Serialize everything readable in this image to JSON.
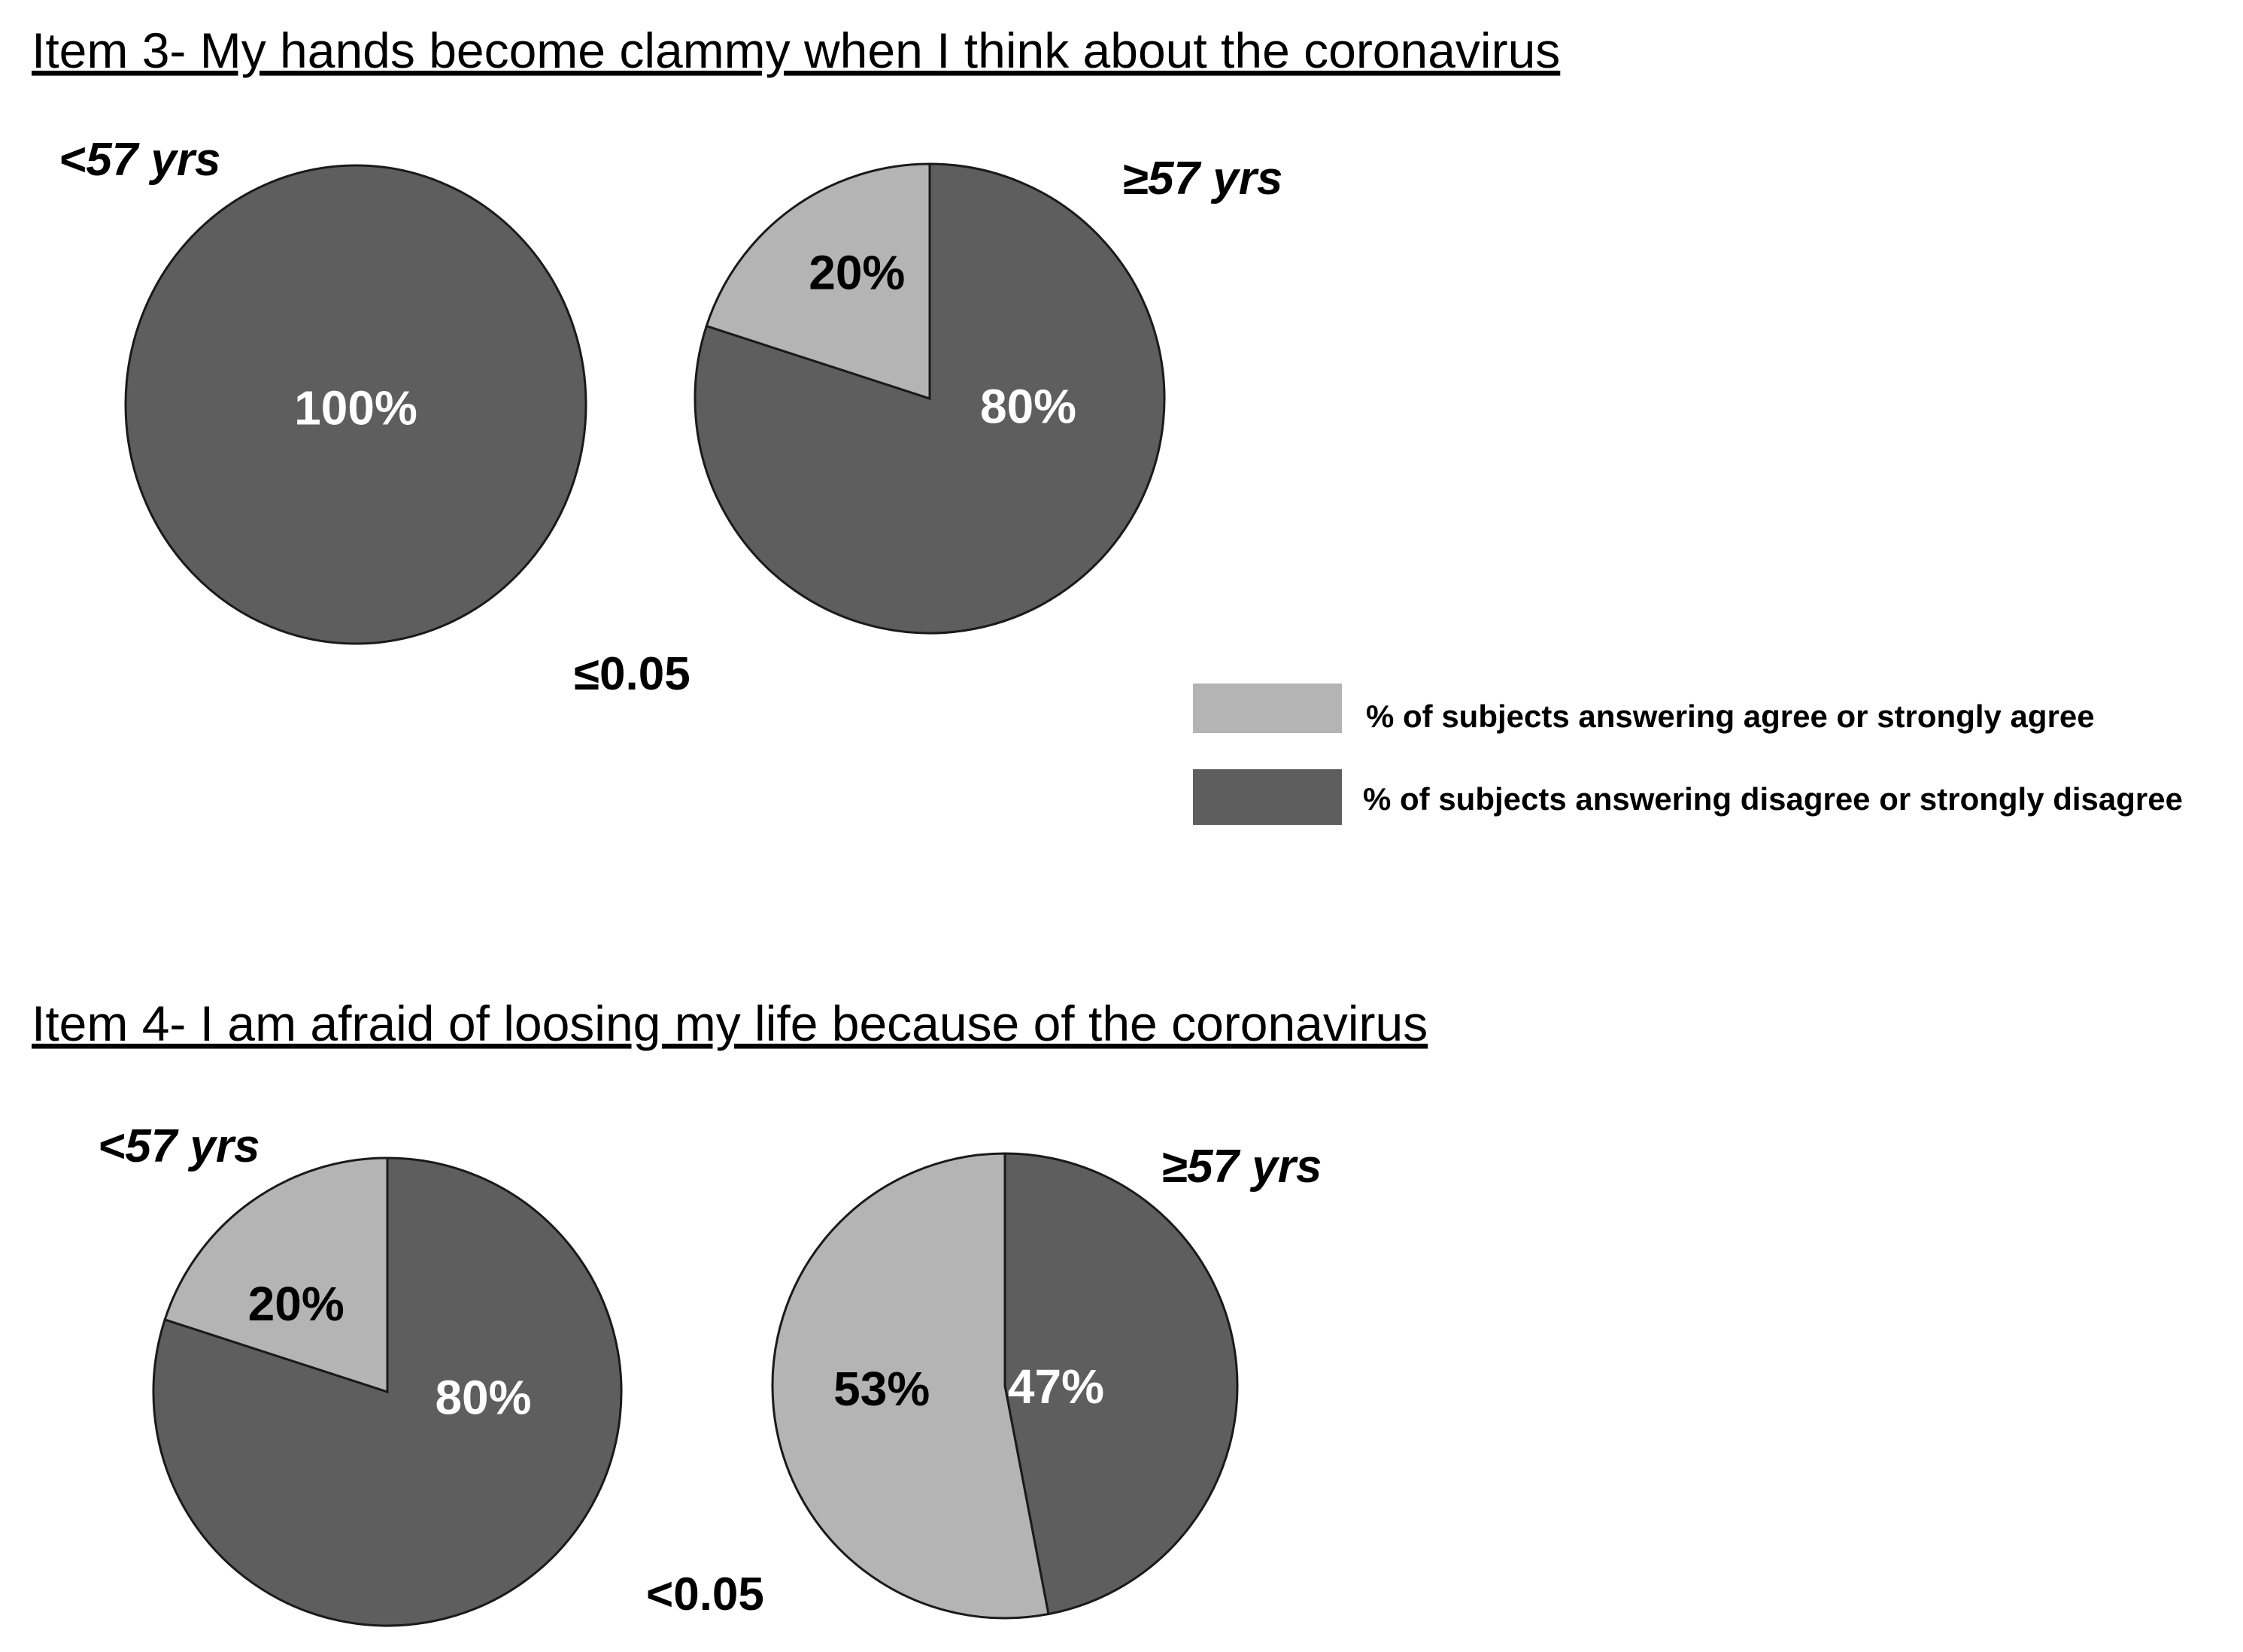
{
  "colors": {
    "agree": "#b4b4b4",
    "disagree": "#5e5e5e",
    "outline": "#1a1a1a",
    "label_on_dark": "#ffffff",
    "label_on_light": "#000000"
  },
  "legend": {
    "position": "right",
    "agree": "% of subjects answering agree or strongly agree",
    "disagree": "% of subjects answering disagree or strongly disagree"
  },
  "chart_data": [
    {
      "type": "pie",
      "title": "Item 3- My hands become clammy when I think about the coronavirus",
      "p_value": "≤0.05",
      "pies": [
        {
          "group": "<57 yrs",
          "slices": [
            {
              "series": "agree",
              "value": 0,
              "label": ""
            },
            {
              "series": "disagree",
              "value": 100,
              "label": "100%"
            }
          ]
        },
        {
          "group": "≥57 yrs",
          "slices": [
            {
              "series": "agree",
              "value": 20,
              "label": "20%"
            },
            {
              "series": "disagree",
              "value": 80,
              "label": "80%"
            }
          ]
        }
      ]
    },
    {
      "type": "pie",
      "title": "Item 4- I am afraid of loosing my life because of the coronavirus",
      "p_value": "<0.05",
      "pies": [
        {
          "group": "<57 yrs",
          "slices": [
            {
              "series": "agree",
              "value": 20,
              "label": "20%"
            },
            {
              "series": "disagree",
              "value": 80,
              "label": "80%"
            }
          ]
        },
        {
          "group": "≥57 yrs",
          "slices": [
            {
              "series": "agree",
              "value": 53,
              "label": "53%"
            },
            {
              "series": "disagree",
              "value": 47,
              "label": "47%"
            }
          ]
        }
      ]
    }
  ]
}
